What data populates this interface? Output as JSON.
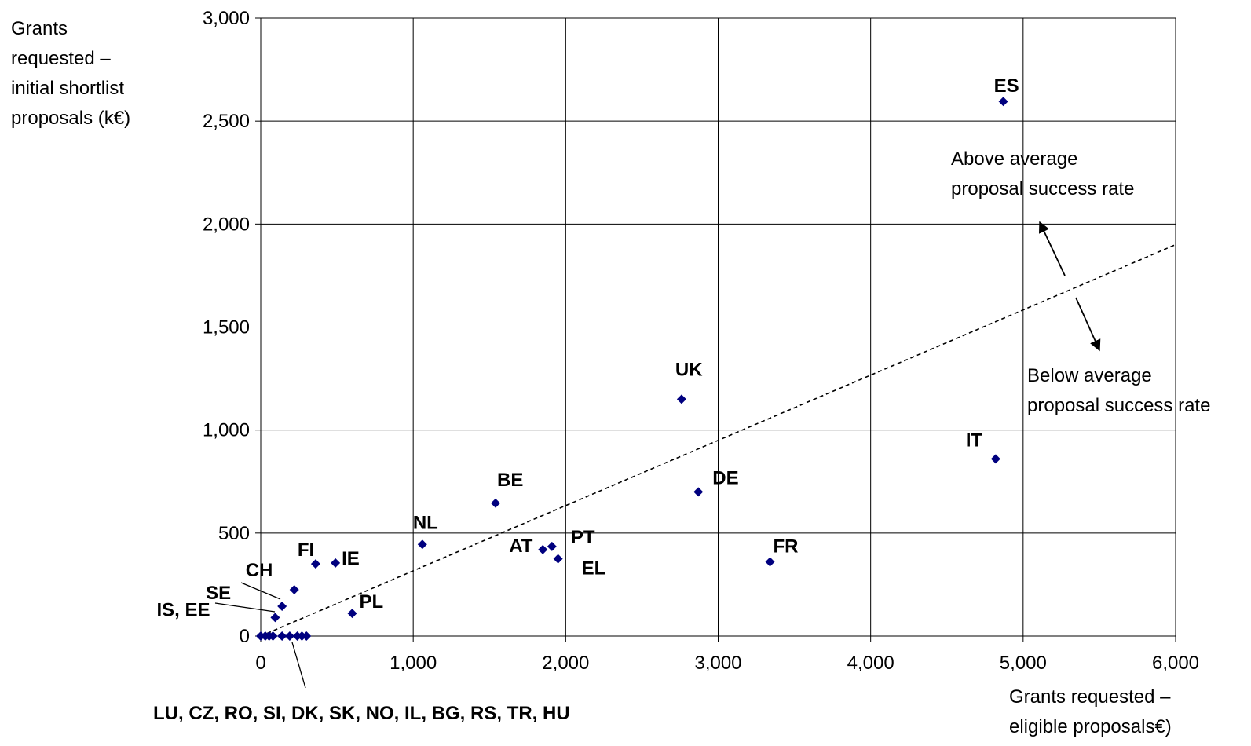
{
  "chart_data": {
    "type": "scatter",
    "ylabel_lines": [
      "Grants",
      "requested –",
      "initial shortlist",
      "proposals (k€)"
    ],
    "xlabel_lines": [
      "Grants requested –",
      "eligible proposals€)"
    ],
    "xlim": [
      0,
      6000
    ],
    "ylim": [
      0,
      3000
    ],
    "x_ticks": [
      "0",
      "1,000",
      "2,000",
      "3,000",
      "4,000",
      "5,000",
      "6,000"
    ],
    "y_ticks": [
      "0",
      "500",
      "1,000",
      "1,500",
      "2,000",
      "2,500",
      "3,000"
    ],
    "grid": true,
    "points": [
      {
        "label": "ES",
        "x": 4870,
        "y": 2595
      },
      {
        "label": "UK",
        "x": 2760,
        "y": 1150
      },
      {
        "label": "IT",
        "x": 4820,
        "y": 860
      },
      {
        "label": "DE",
        "x": 2870,
        "y": 700
      },
      {
        "label": "BE",
        "x": 1540,
        "y": 645
      },
      {
        "label": "NL",
        "x": 1060,
        "y": 445
      },
      {
        "label": "AT",
        "x": 1850,
        "y": 420
      },
      {
        "label": "PT",
        "x": 1910,
        "y": 435
      },
      {
        "label": "EL",
        "x": 1950,
        "y": 375
      },
      {
        "label": "FR",
        "x": 3340,
        "y": 360
      },
      {
        "label": "FI",
        "x": 360,
        "y": 350
      },
      {
        "label": "IE",
        "x": 490,
        "y": 355
      },
      {
        "label": "CH",
        "x": 220,
        "y": 225
      },
      {
        "label": "SE",
        "x": 140,
        "y": 145
      },
      {
        "label": "IS, EE",
        "x": 95,
        "y": 90
      },
      {
        "label": "PL",
        "x": 600,
        "y": 110
      },
      {
        "label": "",
        "x": 0,
        "y": 0
      },
      {
        "label": "",
        "x": 30,
        "y": 0
      },
      {
        "label": "",
        "x": 55,
        "y": 0
      },
      {
        "label": "",
        "x": 80,
        "y": 0
      },
      {
        "label": "",
        "x": 140,
        "y": 0
      },
      {
        "label": "",
        "x": 190,
        "y": 0
      },
      {
        "label": "",
        "x": 240,
        "y": 0
      },
      {
        "label": "",
        "x": 270,
        "y": 0
      },
      {
        "label": "",
        "x": 300,
        "y": 0
      }
    ],
    "trend_line": {
      "x": [
        0,
        6000
      ],
      "y": [
        0,
        1900
      ]
    },
    "annotations": {
      "above": [
        "Above average",
        "proposal success rate"
      ],
      "below": [
        "Below average",
        "proposal success rate"
      ],
      "group_label": "LU, CZ, RO, SI, DK, SK, NO, IL, BG, RS, TR, HU"
    },
    "colors": {
      "marker": "#00007F",
      "grid": "#000000",
      "trend": "#000000"
    }
  }
}
